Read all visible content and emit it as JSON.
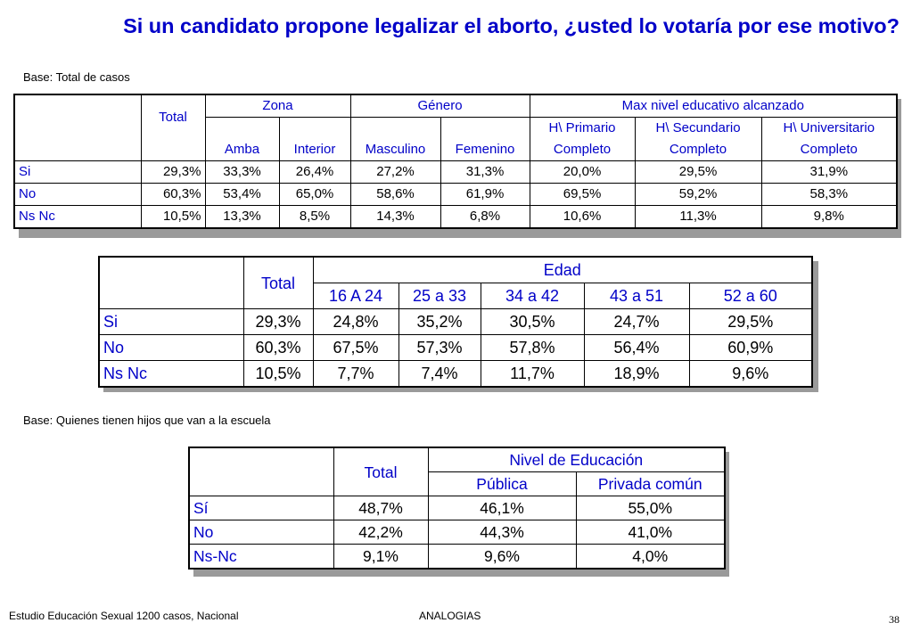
{
  "title": "Si un candidato propone legalizar el aborto, ¿usted lo votaría por ese motivo?",
  "base1": "Base: Total de casos",
  "base2": "Base: Quienes tienen hijos que van a la escuela",
  "footer": {
    "left": "Estudio Educación Sexual 1200 casos, Nacional",
    "center": "ANALOGIAS",
    "page": "38"
  },
  "table1": {
    "total": "Total",
    "groups": {
      "zona": "Zona",
      "genero": "Género",
      "educ": "Max nivel educativo alcanzado"
    },
    "cols": {
      "amba": "Amba",
      "interior": "Interior",
      "masculino": "Masculino",
      "femenino": "Femenino",
      "primario_1": "H\\ Primario",
      "primario_2": "Completo",
      "secundario_1": "H\\ Secundario",
      "secundario_2": "Completo",
      "universitario_1": "H\\ Universitario",
      "universitario_2": "Completo"
    },
    "rows": [
      {
        "label": "Si",
        "values": [
          "29,3%",
          "33,3%",
          "26,4%",
          "27,2%",
          "31,3%",
          "20,0%",
          "29,5%",
          "31,9%"
        ]
      },
      {
        "label": "No",
        "values": [
          "60,3%",
          "53,4%",
          "65,0%",
          "58,6%",
          "61,9%",
          "69,5%",
          "59,2%",
          "58,3%"
        ]
      },
      {
        "label": "Ns Nc",
        "values": [
          "10,5%",
          "13,3%",
          "8,5%",
          "14,3%",
          "6,8%",
          "10,6%",
          "11,3%",
          "9,8%"
        ]
      }
    ]
  },
  "table2": {
    "total": "Total",
    "group": "Edad",
    "cols": [
      "16 A 24",
      "25 a 33",
      "34 a 42",
      "43 a 51",
      "52 a 60"
    ],
    "rows": [
      {
        "label": "Si",
        "values": [
          "29,3%",
          "24,8%",
          "35,2%",
          "30,5%",
          "24,7%",
          "29,5%"
        ]
      },
      {
        "label": "No",
        "values": [
          "60,3%",
          "67,5%",
          "57,3%",
          "57,8%",
          "56,4%",
          "60,9%"
        ]
      },
      {
        "label": "Ns Nc",
        "values": [
          "10,5%",
          "7,7%",
          "7,4%",
          "11,7%",
          "18,9%",
          "9,6%"
        ]
      }
    ]
  },
  "table3": {
    "total": "Total",
    "group": "Nivel de Educación",
    "cols": [
      "Pública",
      "Privada común"
    ],
    "rows": [
      {
        "label": "Sí",
        "values": [
          "48,7%",
          "46,1%",
          "55,0%"
        ]
      },
      {
        "label": "No",
        "values": [
          "42,2%",
          "44,3%",
          "41,0%"
        ]
      },
      {
        "label": "Ns-Nc",
        "values": [
          "9,1%",
          "9,6%",
          "4,0%"
        ]
      }
    ]
  }
}
